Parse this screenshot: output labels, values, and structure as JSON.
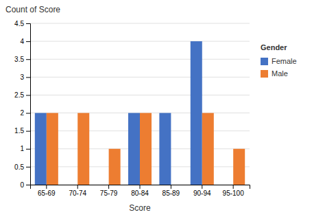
{
  "chart_data": {
    "type": "bar",
    "y_label": "Count of Score",
    "x_label": "Score",
    "legend_title": "Gender",
    "categories": [
      "65-69",
      "70-74",
      "75-79",
      "80-84",
      "85-89",
      "90-94",
      "95-100"
    ],
    "series": [
      {
        "name": "Female",
        "color": "#4472C4",
        "values": [
          2,
          0,
          0,
          2,
          2,
          4,
          0
        ]
      },
      {
        "name": "Male",
        "color": "#ED7D31",
        "values": [
          2,
          2,
          1,
          2,
          0,
          2,
          1
        ]
      }
    ],
    "ylim": [
      0,
      4.5
    ],
    "yticks": [
      0,
      0.5,
      1,
      1.5,
      2,
      2.5,
      3,
      3.5,
      4,
      4.5
    ],
    "grid": true,
    "legend": "right"
  }
}
